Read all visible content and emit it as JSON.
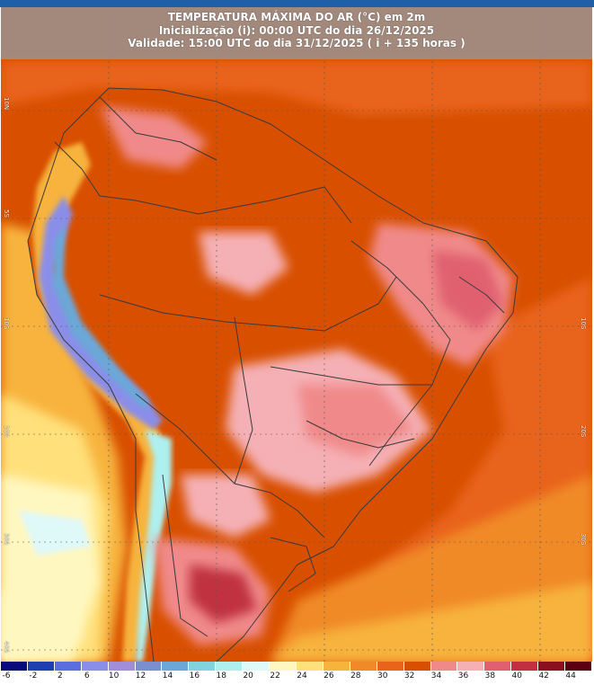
{
  "header": {
    "title": "TEMPERATURA MÁXIMA DO AR (°C) em 2m",
    "init": "Inicialização (i): 00:00 UTC do dia 26/12/2025",
    "validity": "Validade: 15:00 UTC do dia 31/12/2025 ( i + 135 horas )"
  },
  "lat_labels_left": [
    "10N",
    "5S",
    "10S",
    "20S",
    "30S",
    "40S"
  ],
  "lat_labels_right": [
    "10S",
    "20S",
    "30S"
  ],
  "legend": {
    "ticks": [
      "-6",
      "-2",
      "2",
      "6",
      "10",
      "12",
      "14",
      "16",
      "18",
      "20",
      "22",
      "24",
      "26",
      "28",
      "30",
      "32",
      "34",
      "36",
      "38",
      "40",
      "42",
      "44"
    ],
    "colors": [
      "#0a0a7a",
      "#1e3fb0",
      "#5a6ee0",
      "#8a8ee8",
      "#a08fd8",
      "#7a8fd0",
      "#6aa8d8",
      "#7fd4e0",
      "#aef0f0",
      "#dff8f8",
      "#fff7c0",
      "#ffe07a",
      "#f7b33c",
      "#f08a28",
      "#e8641a",
      "#d84f00",
      "#f08a8a",
      "#f5b0b5",
      "#e06070",
      "#c03040",
      "#8a1020",
      "#5a0010"
    ]
  }
}
